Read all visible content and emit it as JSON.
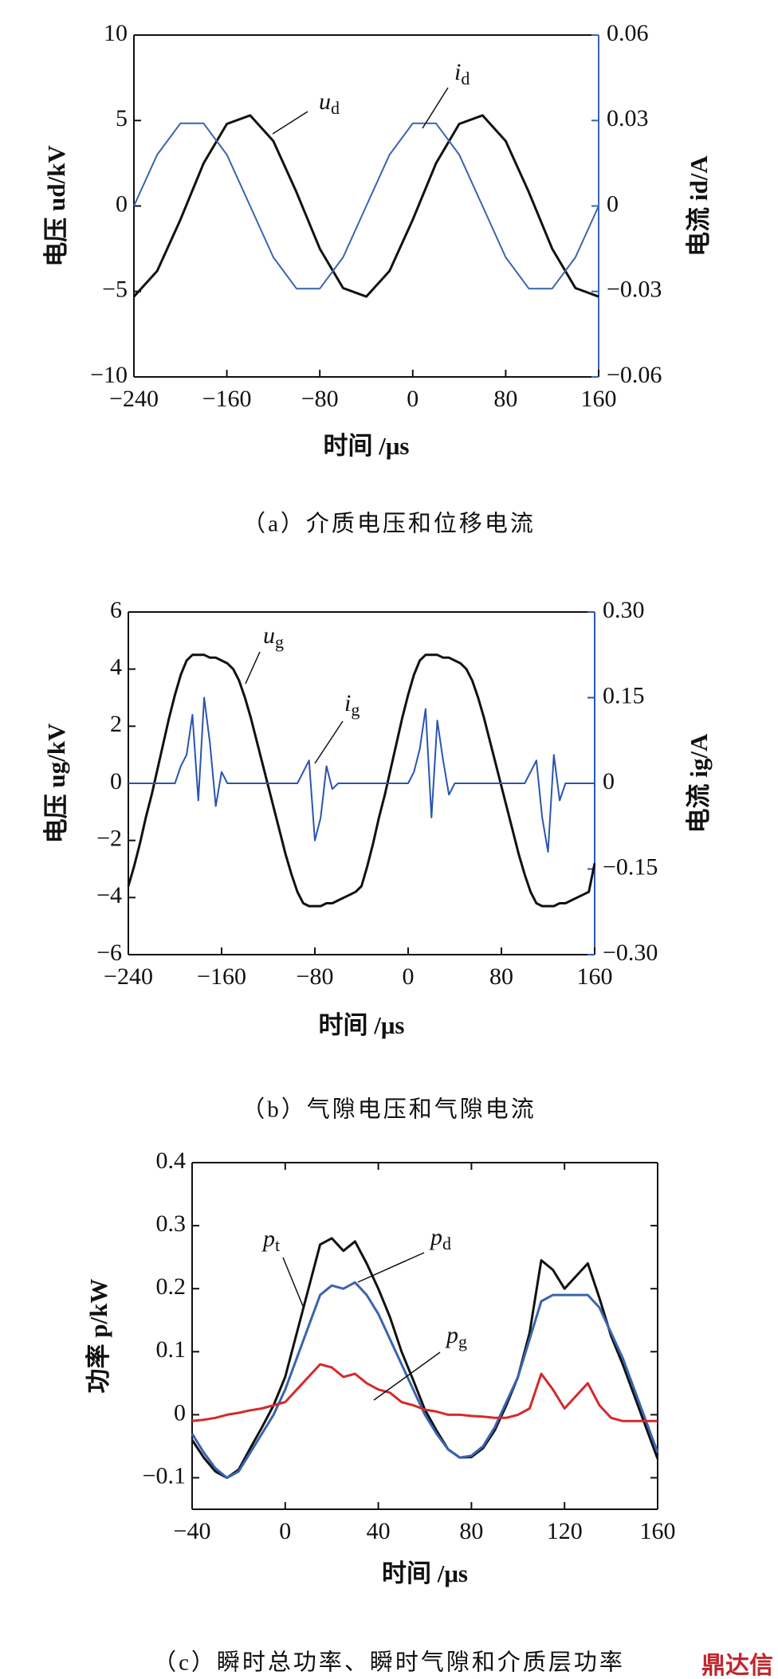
{
  "chart_data": [
    {
      "type": "line",
      "caption": "（a）介质电压和位移电流",
      "xlabel": "时间 /μs",
      "ylabel": "电压 ud/kV",
      "y2label": "电流 id/A",
      "xlim": [
        -240,
        160
      ],
      "xticks": [
        {
          "value": -240,
          "label": "−240"
        },
        {
          "value": -160,
          "label": "−160"
        },
        {
          "value": -80,
          "label": "−80"
        },
        0,
        80,
        160
      ],
      "ylim": [
        -10,
        10
      ],
      "yticks": [
        {
          "value": -10,
          "label": "−10"
        },
        {
          "value": -5,
          "label": "−5"
        },
        0,
        5,
        10
      ],
      "y2lim": [
        -0.06,
        0.06
      ],
      "y2ticks": [
        {
          "value": -0.06,
          "label": "−0.06"
        },
        {
          "value": -0.03,
          "label": "−0.03"
        },
        0,
        0.03,
        0.06
      ],
      "x": [
        -240,
        -220,
        -200,
        -180,
        -160,
        -140,
        -120,
        -100,
        -80,
        -60,
        -40,
        -20,
        0,
        20,
        40,
        60,
        80,
        100,
        120,
        140,
        160
      ],
      "series": [
        {
          "name": "ud",
          "color": "#111111",
          "values": [
            -5.3,
            -3.8,
            -0.8,
            2.5,
            4.8,
            5.3,
            3.8,
            0.8,
            -2.5,
            -4.8,
            -5.3,
            -3.8,
            -0.8,
            2.5,
            4.8,
            5.3,
            3.8,
            0.8,
            -2.5,
            -4.8,
            -5.3
          ]
        },
        {
          "name": "id",
          "color": "#3a64b0",
          "axis": "y2",
          "values": [
            0,
            0.018,
            0.029,
            0.029,
            0.018,
            0,
            -0.018,
            -0.029,
            -0.029,
            -0.018,
            0,
            0.018,
            0.029,
            0.029,
            0.018,
            0,
            -0.018,
            -0.029,
            -0.029,
            -0.018,
            0
          ]
        }
      ]
    },
    {
      "type": "line",
      "caption": "（b）气隙电压和气隙电流",
      "xlabel": "时间 /μs",
      "ylabel": "电压 ug/kV",
      "y2label": "电流 ig/A",
      "xlim": [
        -240,
        160
      ],
      "xticks": [
        {
          "value": -240,
          "label": "−240"
        },
        {
          "value": -160,
          "label": "−160"
        },
        {
          "value": -80,
          "label": "−80"
        },
        0,
        80,
        160
      ],
      "ylim": [
        -6,
        6
      ],
      "yticks": [
        {
          "value": -6,
          "label": "−6"
        },
        {
          "value": -4,
          "label": "−4"
        },
        {
          "value": -2,
          "label": "−2"
        },
        0,
        2,
        4,
        6
      ],
      "y2lim": [
        -0.3,
        0.3
      ],
      "y2ticks": [
        {
          "value": -0.3,
          "label": "−0.30"
        },
        {
          "value": -0.15,
          "label": "−0.15"
        },
        0,
        0.15,
        {
          "value": 0.3,
          "label": "0.30"
        }
      ],
      "x": [
        -240,
        -235,
        -230,
        -225,
        -220,
        -215,
        -210,
        -205,
        -200,
        -195,
        -190,
        -185,
        -180,
        -175,
        -170,
        -165,
        -160,
        -155,
        -150,
        -145,
        -140,
        -135,
        -130,
        -125,
        -120,
        -115,
        -110,
        -105,
        -100,
        -95,
        -90,
        -85,
        -80,
        -75,
        -70,
        -65,
        -60,
        -55,
        -50,
        -45,
        -40,
        -35,
        -30,
        -25,
        -20,
        -15,
        -10,
        -5,
        0,
        5,
        10,
        15,
        20,
        25,
        30,
        35,
        40,
        45,
        50,
        55,
        60,
        65,
        70,
        75,
        80,
        85,
        90,
        95,
        100,
        105,
        110,
        115,
        120,
        125,
        130,
        135,
        140,
        145,
        150,
        155,
        160
      ],
      "series": [
        {
          "name": "ug",
          "color": "#111111",
          "values": [
            -3.6,
            -2.9,
            -2.1,
            -1.2,
            -0.4,
            0.5,
            1.4,
            2.3,
            3.1,
            3.8,
            4.3,
            4.5,
            4.5,
            4.5,
            4.4,
            4.4,
            4.3,
            4.2,
            4.0,
            3.6,
            3.0,
            2.3,
            1.5,
            0.7,
            -0.1,
            -0.9,
            -1.7,
            -2.5,
            -3.2,
            -3.8,
            -4.2,
            -4.3,
            -4.3,
            -4.3,
            -4.2,
            -4.2,
            -4.1,
            -4.0,
            -3.9,
            -3.8,
            -3.6,
            -2.9,
            -2.1,
            -1.2,
            -0.4,
            0.5,
            1.4,
            2.3,
            3.1,
            3.8,
            4.3,
            4.5,
            4.5,
            4.5,
            4.4,
            4.4,
            4.3,
            4.2,
            4.0,
            3.6,
            3.0,
            2.3,
            1.5,
            0.7,
            -0.1,
            -0.9,
            -1.7,
            -2.5,
            -3.2,
            -3.8,
            -4.2,
            -4.3,
            -4.3,
            -4.3,
            -4.2,
            -4.2,
            -4.1,
            -4.0,
            -3.9,
            -3.8,
            -2.8
          ]
        },
        {
          "name": "ig",
          "color": "#2a55b0",
          "axis": "y2",
          "values": [
            0,
            0,
            0,
            0,
            0,
            0,
            0,
            0,
            0,
            0.03,
            0.05,
            0.12,
            -0.03,
            0.15,
            0.07,
            -0.04,
            0.02,
            0,
            0,
            0,
            0,
            0,
            0,
            0,
            0,
            0,
            0,
            0,
            0,
            0,
            0.02,
            0.04,
            -0.1,
            -0.06,
            0.03,
            -0.01,
            0,
            0,
            0,
            0,
            0,
            0,
            0,
            0,
            0,
            0,
            0,
            0,
            0,
            0.02,
            0.06,
            0.13,
            -0.06,
            0.11,
            0.04,
            -0.02,
            0,
            0,
            0,
            0,
            0,
            0,
            0,
            0,
            0,
            0,
            0,
            0,
            0,
            0.02,
            0.04,
            -0.06,
            -0.12,
            0.05,
            -0.03,
            0,
            0,
            0,
            0,
            0,
            0
          ]
        }
      ]
    },
    {
      "type": "line",
      "caption": "（c）瞬时总功率、瞬时气隙和介质层功率",
      "xlabel": "时间 /μs",
      "ylabel": "功率 p/kW",
      "watermark": "鼎达信",
      "xlim": [
        -40,
        160
      ],
      "xticks": [
        {
          "value": -40,
          "label": "−40"
        },
        0,
        40,
        80,
        120,
        160
      ],
      "ylim": [
        -0.15,
        0.4
      ],
      "yticks": [
        {
          "value": -0.1,
          "label": "−0.1"
        },
        0,
        0.1,
        0.2,
        0.3,
        0.4
      ],
      "x": [
        -40,
        -35,
        -30,
        -25,
        -20,
        -15,
        -10,
        -5,
        0,
        5,
        10,
        15,
        20,
        25,
        30,
        35,
        40,
        45,
        50,
        55,
        60,
        65,
        70,
        75,
        80,
        85,
        90,
        95,
        100,
        105,
        110,
        115,
        120,
        125,
        130,
        135,
        140,
        145,
        150,
        155,
        160
      ],
      "series": [
        {
          "name": "pt",
          "color": "#111111",
          "values": [
            -0.04,
            -0.068,
            -0.09,
            -0.1,
            -0.087,
            -0.053,
            -0.02,
            0.015,
            0.06,
            0.13,
            0.2,
            0.27,
            0.28,
            0.26,
            0.275,
            0.24,
            0.2,
            0.155,
            0.1,
            0.055,
            0.008,
            -0.025,
            -0.055,
            -0.068,
            -0.067,
            -0.053,
            -0.025,
            0.015,
            0.06,
            0.13,
            0.245,
            0.23,
            0.2,
            0.22,
            0.24,
            0.185,
            0.125,
            0.08,
            0.03,
            -0.02,
            -0.07
          ]
        },
        {
          "name": "pd",
          "color": "#3a64b0",
          "values": [
            -0.03,
            -0.06,
            -0.085,
            -0.1,
            -0.09,
            -0.06,
            -0.03,
            0.0,
            0.04,
            0.09,
            0.14,
            0.19,
            0.205,
            0.2,
            0.21,
            0.19,
            0.16,
            0.12,
            0.08,
            0.04,
            0.0,
            -0.03,
            -0.055,
            -0.068,
            -0.065,
            -0.05,
            -0.02,
            0.02,
            0.06,
            0.12,
            0.18,
            0.19,
            0.19,
            0.19,
            0.19,
            0.17,
            0.13,
            0.09,
            0.04,
            -0.01,
            -0.06
          ]
        },
        {
          "name": "pg",
          "color": "#d42a2a",
          "values": [
            -0.01,
            -0.008,
            -0.005,
            0.0,
            0.003,
            0.007,
            0.01,
            0.015,
            0.02,
            0.04,
            0.06,
            0.08,
            0.075,
            0.06,
            0.065,
            0.05,
            0.04,
            0.035,
            0.02,
            0.015,
            0.008,
            0.005,
            0.0,
            0.0,
            -0.002,
            -0.003,
            -0.005,
            -0.005,
            0.0,
            0.01,
            0.065,
            0.04,
            0.01,
            0.03,
            0.05,
            0.015,
            -0.005,
            -0.01,
            -0.01,
            -0.01,
            -0.01
          ]
        }
      ]
    }
  ]
}
